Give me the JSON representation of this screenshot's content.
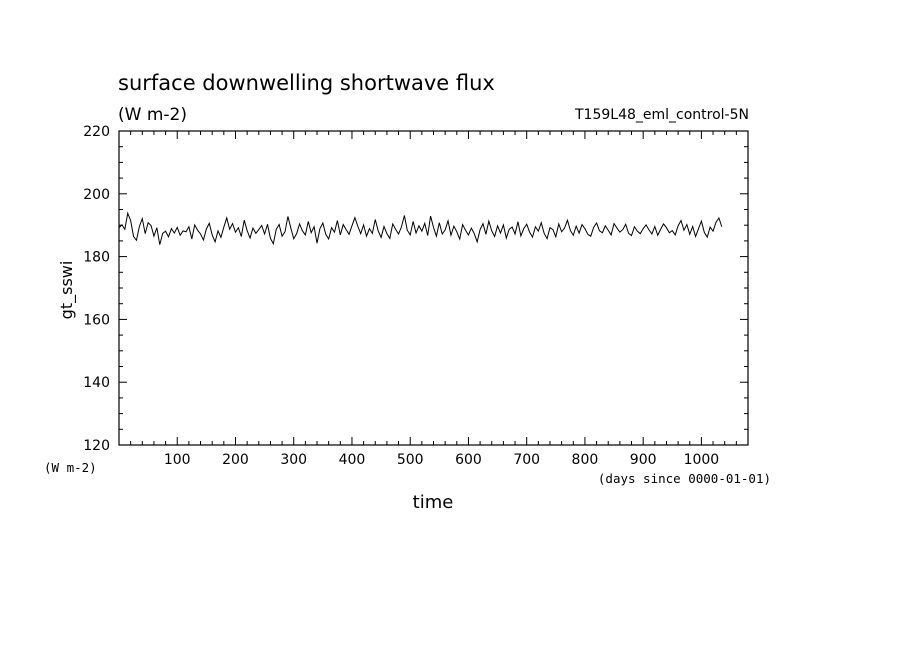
{
  "chart_data": {
    "type": "line",
    "title": "surface downwelling shortwave flux",
    "subtitle": "(W m-2)",
    "run_label": "T159L48_eml_control-5N",
    "xlabel": "time",
    "x_units_label": "(days since 0000-01-01)",
    "ylabel": "gt_sswi",
    "y_units_label": "(W m-2)",
    "xlim": [
      0,
      1080
    ],
    "ylim": [
      120,
      220
    ],
    "x_ticks": [
      100,
      200,
      300,
      400,
      500,
      600,
      700,
      800,
      900,
      1000
    ],
    "x_minor_step": 20,
    "y_ticks": [
      120,
      140,
      160,
      180,
      200,
      220
    ],
    "y_minor_step": 5,
    "grid": false,
    "legend": "none",
    "series": [
      {
        "color": "#000000",
        "x_start": 0,
        "x_step": 5,
        "values": [
          189.2,
          190.1,
          188.7,
          193.8,
          191.5,
          186.4,
          185.2,
          189.6,
          192.1,
          187.3,
          190.8,
          189.9,
          186.5,
          189.2,
          183.8,
          187.4,
          188.1,
          186.3,
          188.9,
          187.5,
          189.3,
          186.8,
          188.2,
          187.9,
          189.5,
          185.6,
          190.1,
          188.4,
          187.2,
          185.3,
          188.8,
          190.6,
          186.9,
          184.7,
          188.2,
          186.1,
          189.4,
          192.3,
          188.7,
          190.5,
          187.8,
          189.2,
          186.4,
          191.6,
          188.3,
          185.9,
          189.1,
          187.4,
          188.6,
          189.9,
          187.2,
          190.3,
          185.8,
          184.1,
          188.7,
          190.2,
          186.5,
          187.9,
          192.8,
          189.1,
          185.7,
          187.3,
          190.4,
          188.2,
          186.9,
          191.2,
          187.6,
          189.5,
          184.3,
          188.9,
          190.7,
          187.1,
          185.6,
          189.2,
          187.8,
          191.5,
          186.9,
          190.2,
          188.6,
          187.1,
          189.8,
          192.4,
          189.7,
          187.3,
          190.1,
          186.5,
          188.9,
          187.4,
          191.8,
          188.2,
          186.1,
          189.6,
          187.3,
          185.8,
          190.4,
          188.7,
          187.2,
          189.5,
          193.1,
          188.4,
          186.9,
          191.2,
          187.5,
          189.8,
          188.1,
          190.6,
          186.7,
          192.9,
          189.3,
          186.5,
          190.8,
          187.2,
          188.5,
          191.4,
          186.8,
          189.7,
          187.9,
          185.6,
          190.2,
          188.4,
          186.9,
          189.1,
          187.3,
          184.7,
          188.6,
          190.5,
          187.1,
          191.3,
          188.2,
          186.4,
          189.8,
          187.5,
          190.1,
          185.9,
          188.7,
          189.4,
          187.2,
          191.1,
          186.6,
          188.9,
          190.3,
          187.8,
          186.2,
          189.5,
          188.1,
          190.8,
          187.4,
          185.7,
          189.2,
          188.6,
          186.3,
          190.4,
          187.9,
          189.1,
          191.6,
          188.3,
          186.8,
          189.7,
          187.5,
          190.2,
          188.9,
          187.1,
          186.5,
          189.3,
          190.7,
          188.2,
          187.6,
          189.8,
          188.4,
          186.9,
          190.5,
          189.1,
          187.8,
          188.6,
          190.3,
          187.4,
          186.7,
          189.5,
          188.1,
          187.3,
          188.9,
          190.1,
          188.5,
          187.2,
          189.6,
          186.8,
          188.7,
          190.4,
          189.2,
          187.6,
          188.3,
          186.9,
          189.8,
          191.5,
          188.4,
          190.2,
          187.1,
          189.6,
          186.4,
          188.9,
          191.3,
          187.7,
          186.2,
          189.4,
          188.1,
          190.9,
          192.3,
          189.5
        ]
      }
    ]
  }
}
